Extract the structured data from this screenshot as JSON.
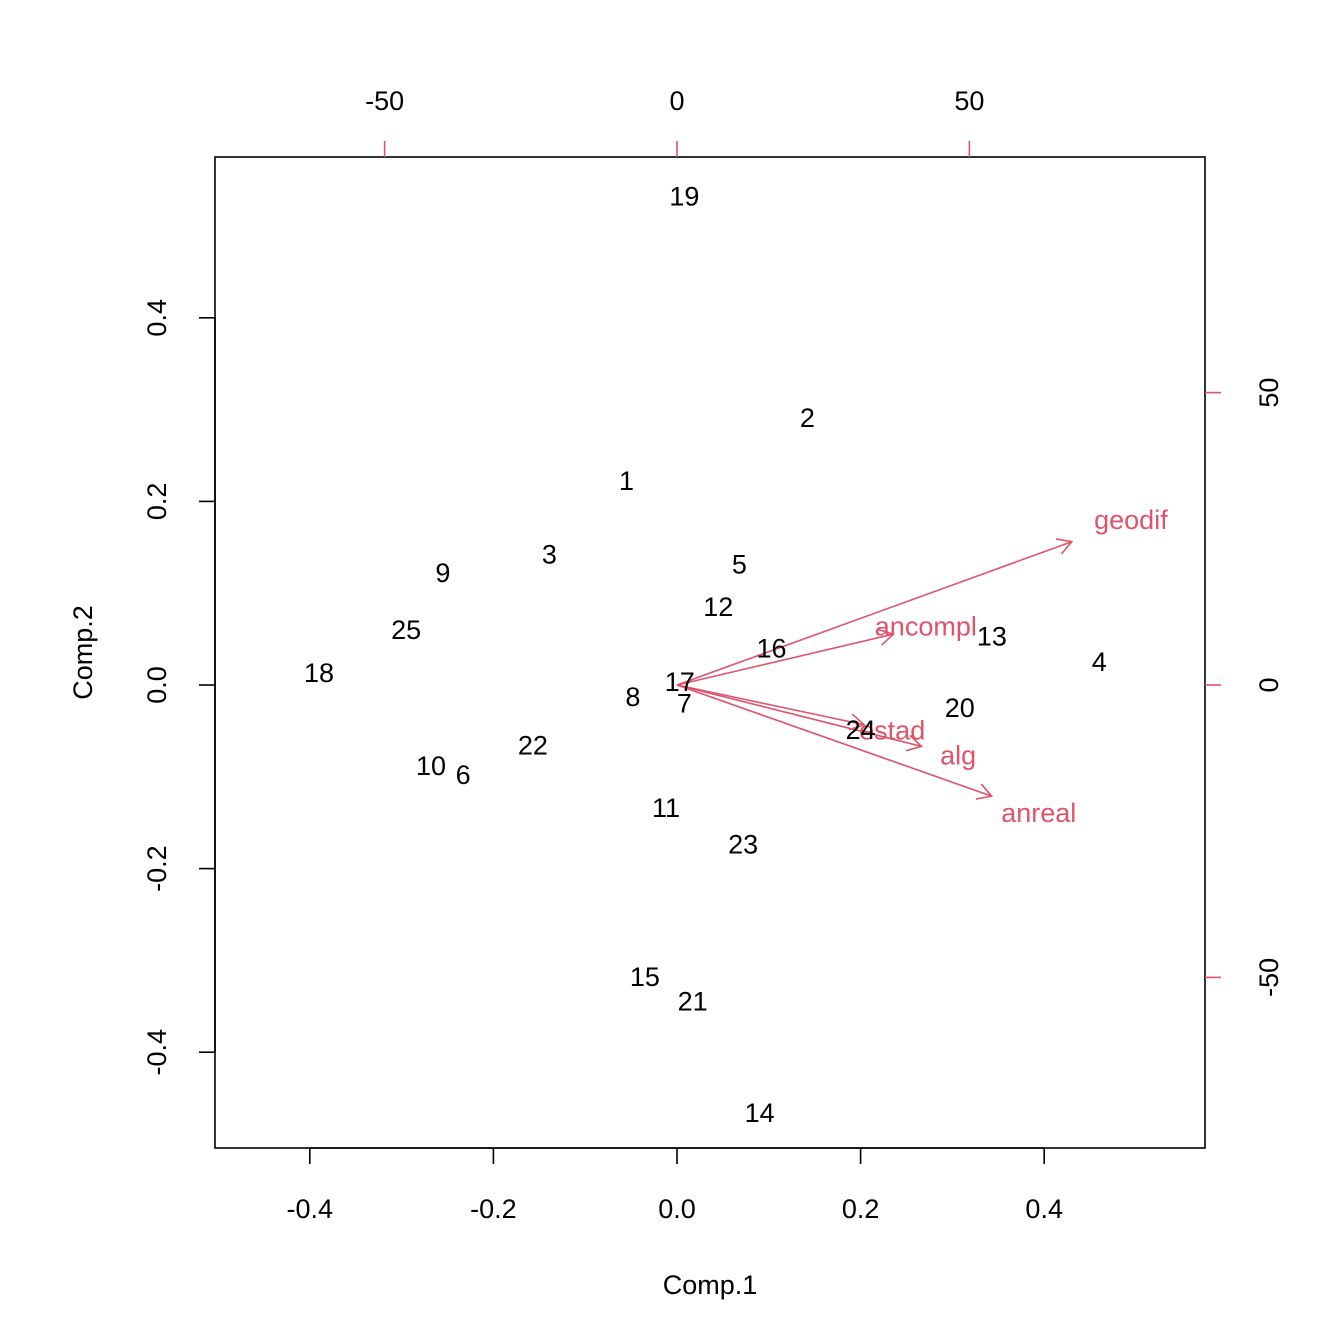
{
  "chart_data": {
    "type": "scatter",
    "subtype": "biplot",
    "title": "",
    "xlabel": "Comp.1",
    "ylabel": "Comp.2",
    "xlim": [
      -0.5,
      0.57
    ],
    "ylim": [
      -0.5,
      0.57
    ],
    "x_ticks": [
      "-0.4",
      "-0.2",
      "0.0",
      "0.2",
      "0.4"
    ],
    "y_ticks": [
      "-0.4",
      "-0.2",
      "0.0",
      "0.2",
      "0.4"
    ],
    "secondary_x_ticks": [
      "-50",
      "0",
      "50"
    ],
    "secondary_y_ticks": [
      "-50",
      "0",
      "50"
    ],
    "secondary_scale_per_unit": 0.00637,
    "loading_color": "#DF536B",
    "point_color": "#000000",
    "grid": false,
    "points": [
      {
        "label": "1",
        "x": -0.055,
        "y": 0.222
      },
      {
        "label": "2",
        "x": 0.142,
        "y": 0.291
      },
      {
        "label": "3",
        "x": -0.139,
        "y": 0.142
      },
      {
        "label": "4",
        "x": 0.46,
        "y": 0.025
      },
      {
        "label": "5",
        "x": 0.068,
        "y": 0.131
      },
      {
        "label": "6",
        "x": -0.233,
        "y": -0.098
      },
      {
        "label": "7",
        "x": 0.008,
        "y": -0.02
      },
      {
        "label": "8",
        "x": -0.048,
        "y": -0.013
      },
      {
        "label": "9",
        "x": -0.255,
        "y": 0.122
      },
      {
        "label": "10",
        "x": -0.268,
        "y": -0.088
      },
      {
        "label": "11",
        "x": -0.012,
        "y": -0.134
      },
      {
        "label": "12",
        "x": 0.045,
        "y": 0.085
      },
      {
        "label": "13",
        "x": 0.343,
        "y": 0.053
      },
      {
        "label": "14",
        "x": 0.09,
        "y": -0.466
      },
      {
        "label": "15",
        "x": -0.035,
        "y": -0.318
      },
      {
        "label": "16",
        "x": 0.103,
        "y": 0.04
      },
      {
        "label": "17",
        "x": 0.003,
        "y": 0.003
      },
      {
        "label": "18",
        "x": -0.39,
        "y": 0.013
      },
      {
        "label": "19",
        "x": 0.008,
        "y": 0.532
      },
      {
        "label": "20",
        "x": 0.308,
        "y": -0.025
      },
      {
        "label": "21",
        "x": 0.017,
        "y": -0.345
      },
      {
        "label": "22",
        "x": -0.157,
        "y": -0.066
      },
      {
        "label": "23",
        "x": 0.072,
        "y": -0.174
      },
      {
        "label": "24",
        "x": 0.2,
        "y": -0.049
      },
      {
        "label": "25",
        "x": -0.295,
        "y": 0.06
      }
    ],
    "loadings": [
      {
        "name": "geodif",
        "x": 67.5,
        "y": 24.5
      },
      {
        "name": "ancompl",
        "x": 37.0,
        "y": 8.7
      },
      {
        "name": "alg",
        "x": 41.8,
        "y": -10.5
      },
      {
        "name": "anreal",
        "x": 53.8,
        "y": -19.0
      },
      {
        "name": "estad",
        "x": 32.0,
        "y": -6.8
      }
    ]
  }
}
